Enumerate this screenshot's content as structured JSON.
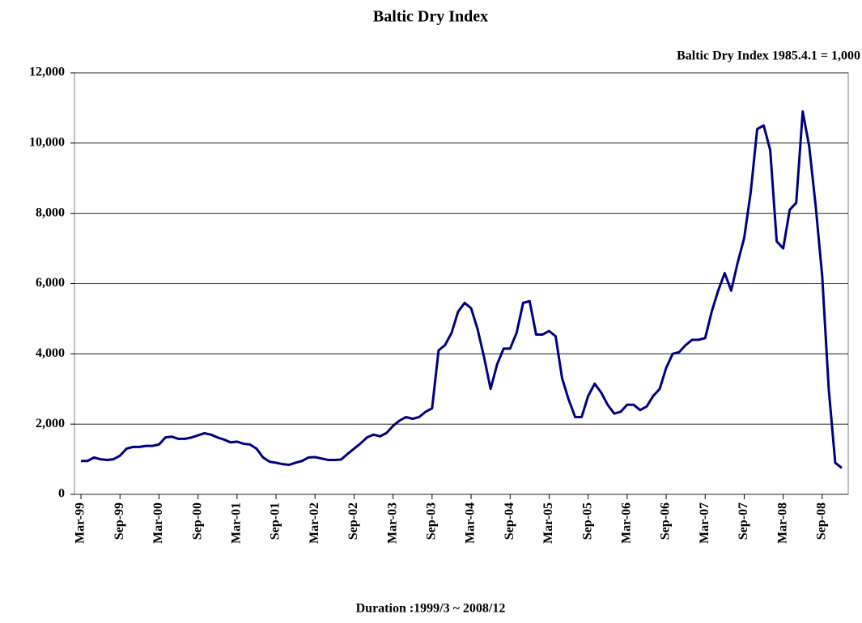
{
  "chart_data": {
    "type": "line",
    "title": "Baltic Dry Index",
    "annotation": "Baltic Dry Index 1985.4.1 = 1,000",
    "xlabel": "Duration :1999/3 ~ 2008/12",
    "x": [
      "1999-03",
      "1999-04",
      "1999-05",
      "1999-06",
      "1999-07",
      "1999-08",
      "1999-09",
      "1999-10",
      "1999-11",
      "1999-12",
      "2000-01",
      "2000-02",
      "2000-03",
      "2000-04",
      "2000-05",
      "2000-06",
      "2000-07",
      "2000-08",
      "2000-09",
      "2000-10",
      "2000-11",
      "2000-12",
      "2001-01",
      "2001-02",
      "2001-03",
      "2001-04",
      "2001-05",
      "2001-06",
      "2001-07",
      "2001-08",
      "2001-09",
      "2001-10",
      "2001-11",
      "2001-12",
      "2002-01",
      "2002-02",
      "2002-03",
      "2002-04",
      "2002-05",
      "2002-06",
      "2002-07",
      "2002-08",
      "2002-09",
      "2002-10",
      "2002-11",
      "2002-12",
      "2003-01",
      "2003-02",
      "2003-03",
      "2003-04",
      "2003-05",
      "2003-06",
      "2003-07",
      "2003-08",
      "2003-09",
      "2003-10",
      "2003-11",
      "2003-12",
      "2004-01",
      "2004-02",
      "2004-03",
      "2004-04",
      "2004-05",
      "2004-06",
      "2004-07",
      "2004-08",
      "2004-09",
      "2004-10",
      "2004-11",
      "2004-12",
      "2005-01",
      "2005-02",
      "2005-03",
      "2005-04",
      "2005-05",
      "2005-06",
      "2005-07",
      "2005-08",
      "2005-09",
      "2005-10",
      "2005-11",
      "2005-12",
      "2006-01",
      "2006-02",
      "2006-03",
      "2006-04",
      "2006-05",
      "2006-06",
      "2006-07",
      "2006-08",
      "2006-09",
      "2006-10",
      "2006-11",
      "2006-12",
      "2007-01",
      "2007-02",
      "2007-03",
      "2007-04",
      "2007-05",
      "2007-06",
      "2007-07",
      "2007-08",
      "2007-09",
      "2007-10",
      "2007-11",
      "2007-12",
      "2008-01",
      "2008-02",
      "2008-03",
      "2008-04",
      "2008-05",
      "2008-06",
      "2008-07",
      "2008-08",
      "2008-09",
      "2008-10",
      "2008-11",
      "2008-12"
    ],
    "series": [
      {
        "name": "Baltic Dry Index",
        "color": "#000080",
        "values": [
          950,
          950,
          1050,
          1000,
          980,
          1000,
          1100,
          1300,
          1350,
          1350,
          1380,
          1380,
          1420,
          1620,
          1640,
          1580,
          1580,
          1620,
          1680,
          1740,
          1700,
          1620,
          1560,
          1480,
          1500,
          1440,
          1420,
          1300,
          1050,
          930,
          900,
          860,
          840,
          900,
          950,
          1050,
          1060,
          1020,
          980,
          980,
          990,
          1150,
          1300,
          1450,
          1620,
          1700,
          1650,
          1750,
          1950,
          2100,
          2200,
          2150,
          2200,
          2350,
          2450,
          4100,
          4250,
          4600,
          5200,
          5450,
          5300,
          4700,
          3900,
          3000,
          3700,
          4150,
          4150,
          4600,
          5450,
          5500,
          4550,
          4550,
          4650,
          4500,
          3300,
          2700,
          2200,
          2200,
          2800,
          3150,
          2900,
          2550,
          2300,
          2350,
          2550,
          2550,
          2400,
          2500,
          2800,
          3000,
          3600,
          4000,
          4050,
          4250,
          4400,
          4400,
          4450,
          5200,
          5800,
          6300,
          5800,
          6600,
          7300,
          8600,
          10400,
          10500,
          9800,
          7200,
          7000,
          8100,
          8300,
          10900,
          9900,
          8200,
          6200,
          3000,
          900,
          750
        ]
      }
    ],
    "xlim": [
      "1999-02",
      "2009-01"
    ],
    "xticks": [
      {
        "value": "1999-03",
        "label": "Mar-99"
      },
      {
        "value": "1999-09",
        "label": "Sep-99"
      },
      {
        "value": "2000-03",
        "label": "Mar-00"
      },
      {
        "value": "2000-09",
        "label": "Sep-00"
      },
      {
        "value": "2001-03",
        "label": "Mar-01"
      },
      {
        "value": "2001-09",
        "label": "Sep-01"
      },
      {
        "value": "2002-03",
        "label": "Mar-02"
      },
      {
        "value": "2002-09",
        "label": "Sep-02"
      },
      {
        "value": "2003-03",
        "label": "Mar-03"
      },
      {
        "value": "2003-09",
        "label": "Sep-03"
      },
      {
        "value": "2004-03",
        "label": "Mar-04"
      },
      {
        "value": "2004-09",
        "label": "Sep-04"
      },
      {
        "value": "2005-03",
        "label": "Mar-05"
      },
      {
        "value": "2005-09",
        "label": "Sep-05"
      },
      {
        "value": "2006-03",
        "label": "Mar-06"
      },
      {
        "value": "2006-09",
        "label": "Sep-06"
      },
      {
        "value": "2007-03",
        "label": "Mar-07"
      },
      {
        "value": "2007-09",
        "label": "Sep-07"
      },
      {
        "value": "2008-03",
        "label": "Mar-08"
      },
      {
        "value": "2008-09",
        "label": "Sep-08"
      }
    ],
    "ylim": [
      0,
      12000
    ],
    "yticks": [
      0,
      {
        "value": 2000,
        "label": "2,000"
      },
      {
        "value": 4000,
        "label": "4,000"
      },
      {
        "value": 6000,
        "label": "6,000"
      },
      {
        "value": 8000,
        "label": "8,000"
      },
      {
        "value": 10000,
        "label": "10,000"
      },
      {
        "value": 12000,
        "label": "12,000"
      }
    ],
    "grid": true
  }
}
